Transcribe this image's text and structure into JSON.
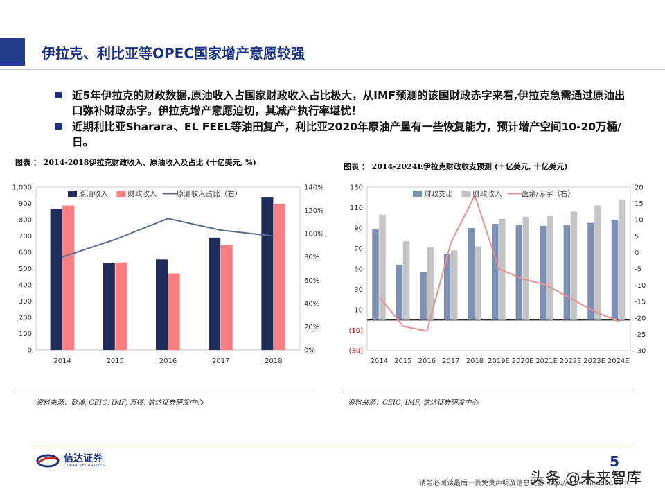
{
  "page": {
    "title": "伊拉克、利比亚等OPEC国家增产意愿较强",
    "bullets": [
      "近5年伊拉克的财政数据,原油收入占国家财政收入占比极大，从IMF预测的该国财政赤字来看,伊拉克急需通过原油出口弥补财政赤字。伊拉克增产意愿迫切，其减产执行率堪忧！",
      "近期利比亚Sharara、EL FEEL等油田复产，利比亚2020年原油产量有一些恢复能力，预计增产空间10-20万桶/日。"
    ],
    "page_number": "5",
    "disclaimer": "请务必阅读最后一页免责声明及信息披露 http://www.cindasc.com",
    "watermark": "头条 @未来智库",
    "logo": {
      "main": "信达证券",
      "sub": "CINDA SECURITIES"
    }
  },
  "colors": {
    "brand_blue": "#1a3286",
    "bar_dark_navy": "#1f2d5c",
    "bar_salmon": "#fa7f82",
    "line_slate": "#5a6b8c",
    "bar_steel": "#7f90b5",
    "bar_gray": "#c4c4c4",
    "line_pink": "#ec8f91"
  },
  "chart_data": [
    {
      "type": "bar",
      "title": "图表 ： 2014-2018伊拉克财政收入、原油收入及占比 (十亿美元, %)",
      "source": "资料来源：彭博, CEIC, IMF, 万得, 信达证券研发中心",
      "categories": [
        "2014",
        "2015",
        "2016",
        "2017",
        "2018"
      ],
      "series": [
        {
          "name": "原油收入",
          "kind": "bar",
          "axis": "left",
          "color": "#1f2d5c",
          "values": [
            866,
            532,
            556,
            690,
            940
          ]
        },
        {
          "name": "财政收入",
          "kind": "bar",
          "axis": "left",
          "color": "#fa7f82",
          "values": [
            887,
            537,
            470,
            647,
            897
          ]
        },
        {
          "name": "原油收入占比（右）",
          "kind": "line",
          "axis": "right",
          "color": "#5a6b8c",
          "values": [
            0.8,
            0.95,
            1.13,
            1.03,
            0.98
          ]
        }
      ],
      "y_left": {
        "min": 0,
        "max": 1000,
        "step": 100,
        "ticks": [
          "0",
          "100",
          "200",
          "300",
          "400",
          "500",
          "600",
          "700",
          "800",
          "900",
          "1,000"
        ]
      },
      "y_right": {
        "min": 0,
        "max": 1.4,
        "step": 0.2,
        "ticks": [
          "0%",
          "20%",
          "40%",
          "60%",
          "80%",
          "100%",
          "120%",
          "140%"
        ]
      },
      "legend": "top"
    },
    {
      "type": "bar",
      "title": "图表 ： 2014-2024E伊拉克财政收支预测 (十亿美元, 十亿美元)",
      "source": "资料来源：CEIC, IMF, 信达证券研发中心",
      "categories": [
        "2014",
        "2015",
        "2016",
        "2017",
        "2018",
        "2019E",
        "2020E",
        "2021E",
        "2022E",
        "2023E",
        "2024E"
      ],
      "series": [
        {
          "name": "财政支出",
          "kind": "bar",
          "axis": "left",
          "color": "#7f90b5",
          "values": [
            89,
            54,
            47,
            65,
            90,
            94,
            93,
            92,
            93,
            95,
            98
          ]
        },
        {
          "name": "财政收入",
          "kind": "bar",
          "axis": "left",
          "color": "#c4c4c4",
          "values": [
            103,
            77,
            71,
            68,
            72,
            99,
            101,
            102,
            106,
            112,
            118
          ]
        },
        {
          "name": "盈余/赤字（右）",
          "kind": "line",
          "axis": "right",
          "color": "#ec8f91",
          "values": [
            -13.5,
            -22.5,
            -24,
            3,
            17.5,
            -5,
            -8,
            -10,
            -14,
            -18,
            -21
          ]
        }
      ],
      "y_left": {
        "min": -30,
        "max": 130,
        "step": 20,
        "ticks": [
          "(30)",
          "(10)",
          "10",
          "30",
          "50",
          "70",
          "90",
          "110",
          "130"
        ]
      },
      "y_right": {
        "min": -30,
        "max": 20,
        "step": 5,
        "ticks": [
          "-30",
          "-25",
          "-20",
          "-15",
          "-10",
          "-5",
          "0",
          "5",
          "10",
          "15",
          "20"
        ]
      },
      "legend": "top"
    }
  ]
}
